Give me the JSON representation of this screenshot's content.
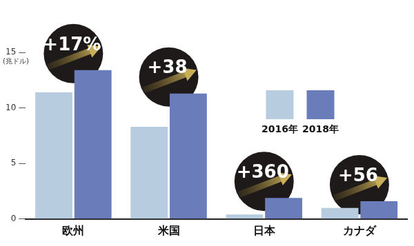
{
  "chart_data": {
    "type": "bar",
    "y_label": "(兆ドル)",
    "categories": [
      "欧州",
      "米国",
      "日本",
      "カナダ"
    ],
    "series": [
      {
        "name": "2016年",
        "color": "#b8cce0",
        "values": [
          11.4,
          8.3,
          0.4,
          1.0
        ]
      },
      {
        "name": "2018年",
        "color": "#6a7cba",
        "values": [
          13.4,
          11.3,
          1.9,
          1.6
        ]
      }
    ],
    "annotations": [
      "+17%",
      "+38",
      "+360",
      "+56"
    ],
    "ylim": [
      0,
      15
    ],
    "yticks": [
      0,
      5,
      10,
      15
    ],
    "grid": false,
    "legend": "right"
  }
}
